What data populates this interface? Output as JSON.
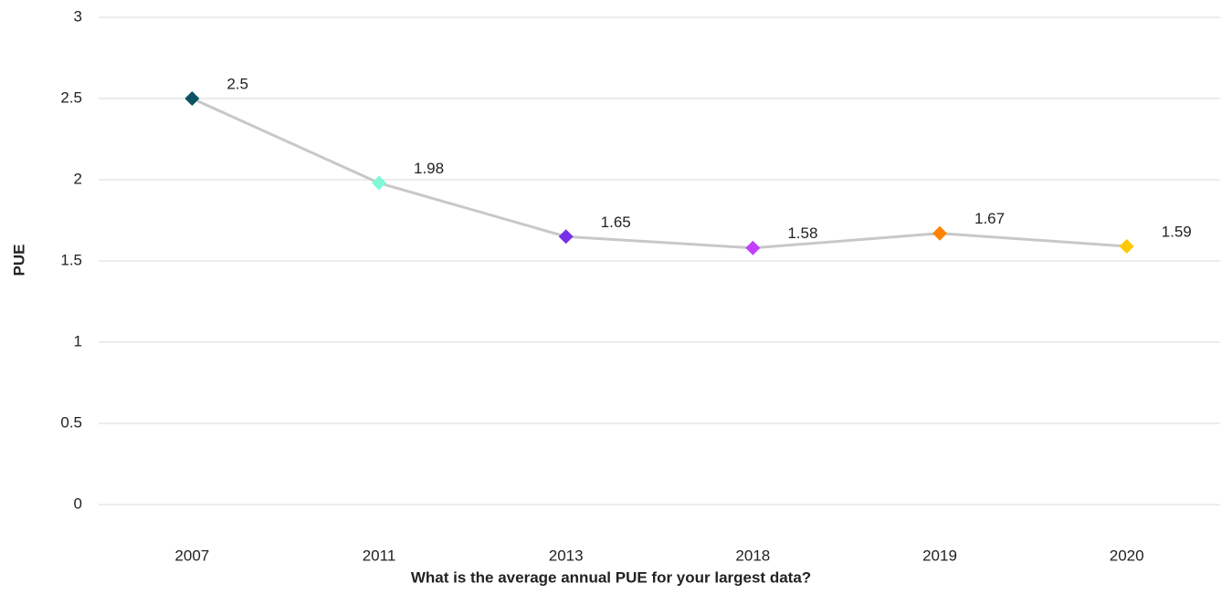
{
  "chart_data": {
    "type": "line",
    "x_label": "What is the average annual PUE for your largest data?",
    "y_label": "PUE",
    "categories": [
      "2007",
      "2011",
      "2013",
      "2018",
      "2019",
      "2020"
    ],
    "values": [
      2.5,
      1.98,
      1.65,
      1.58,
      1.67,
      1.59
    ],
    "color": "#c8c8c8",
    "marker_colors": [
      "#0d5265",
      "#7ff9d8",
      "#7630ea",
      "#c140ff",
      "#ff8300",
      "#fec901"
    ],
    "ylim": [
      0,
      3
    ],
    "yticks": [
      0,
      0.5,
      1,
      1.5,
      2,
      2.5,
      3
    ],
    "grid": true
  }
}
